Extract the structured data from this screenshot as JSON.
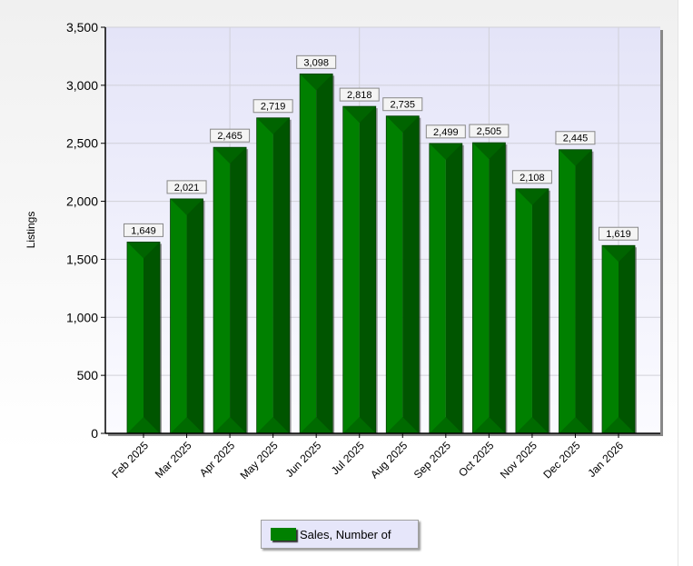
{
  "chart_data": {
    "type": "bar",
    "title": "",
    "xlabel": "",
    "ylabel": "Listings",
    "ylim": [
      0,
      3500
    ],
    "yticks": [
      0,
      500,
      1000,
      1500,
      2000,
      2500,
      3000,
      3500
    ],
    "ytick_labels": [
      "0",
      "500",
      "1,000",
      "1,500",
      "2,000",
      "2,500",
      "3,000",
      "3,500"
    ],
    "categories": [
      "Feb 2025",
      "Mar 2025",
      "Apr 2025",
      "May 2025",
      "Jun 2025",
      "Jul 2025",
      "Aug 2025",
      "Sep 2025",
      "Oct 2025",
      "Nov 2025",
      "Dec 2025",
      "Jan 2026"
    ],
    "series": [
      {
        "name": "Sales, Number of",
        "values": [
          1649,
          2021,
          2465,
          2719,
          3098,
          2818,
          2735,
          2499,
          2505,
          2108,
          2445,
          1619
        ],
        "labels": [
          "1,649",
          "2,021",
          "2,465",
          "2,719",
          "3,098",
          "2,818",
          "2,735",
          "2,499",
          "2,505",
          "2,108",
          "2,445",
          "1,619"
        ],
        "color": "#008000"
      }
    ],
    "grid": true,
    "legend": "bottom-center"
  }
}
